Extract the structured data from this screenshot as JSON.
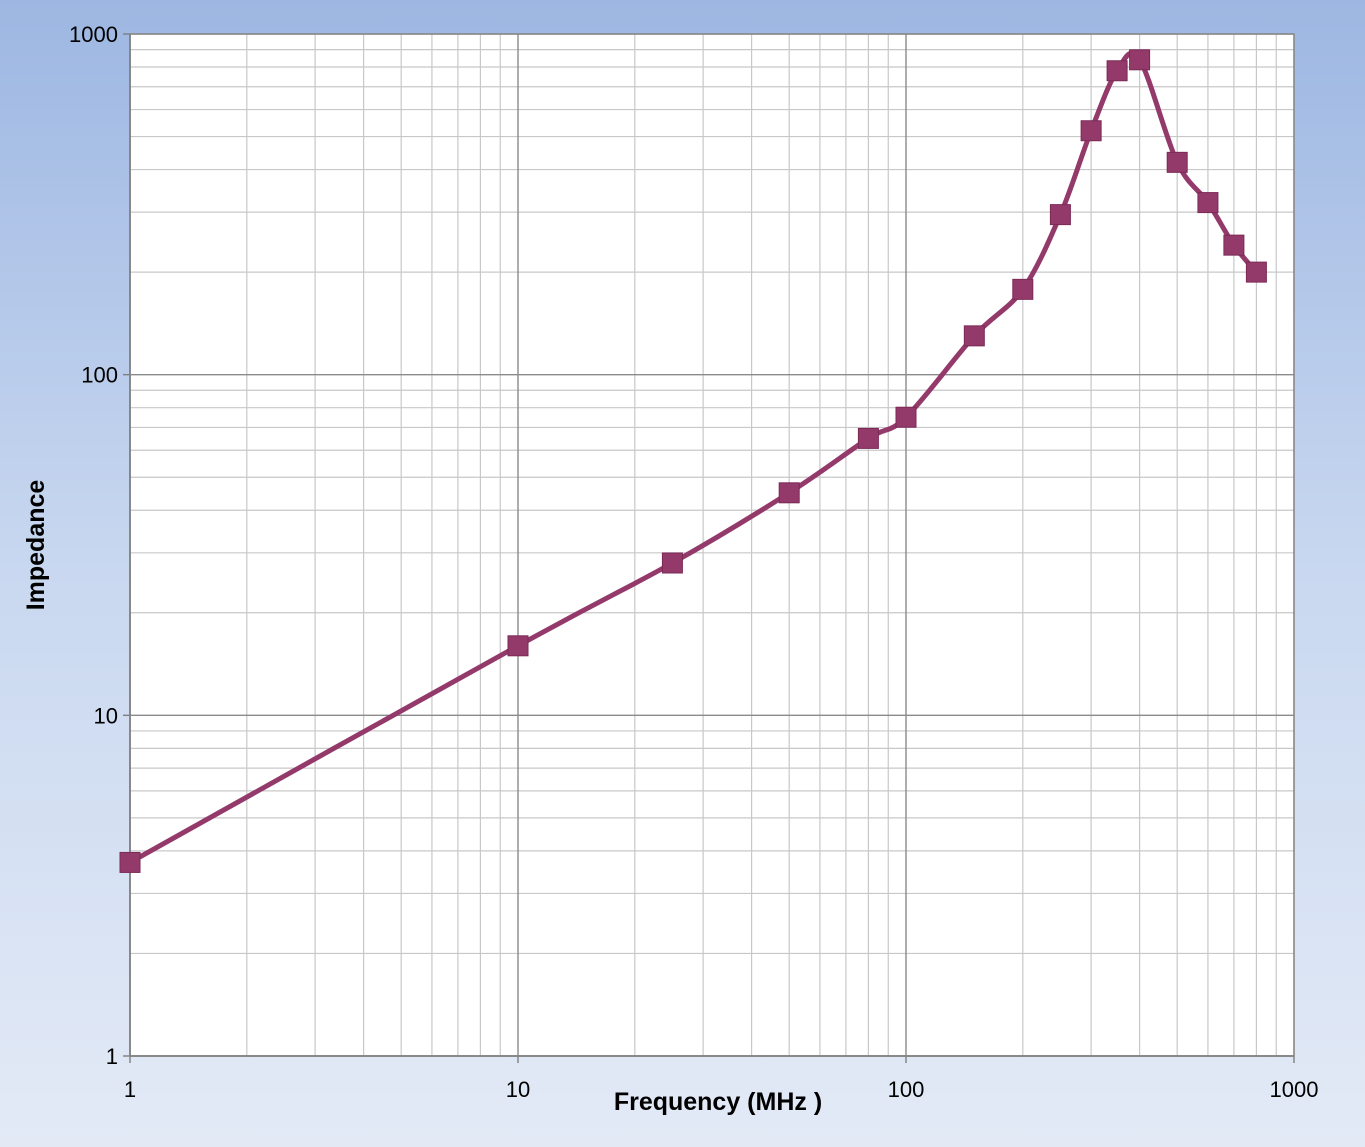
{
  "chart_data": {
    "type": "line",
    "title": "",
    "xlabel": "Frequency (MHz )",
    "ylabel": "Impedance",
    "x_scale": "log",
    "y_scale": "log",
    "xlim": [
      1,
      1000
    ],
    "ylim": [
      1,
      1000
    ],
    "x_ticks": [
      "1",
      "10",
      "100",
      "1000"
    ],
    "y_ticks": [
      "1",
      "10",
      "100",
      "1000"
    ],
    "grid": true,
    "legend": "none",
    "series": [
      {
        "color": "#943a6b",
        "marker": "square",
        "x": [
          1,
          10,
          25,
          50,
          80,
          100,
          150,
          200,
          250,
          300,
          350,
          400,
          500,
          600,
          700,
          800
        ],
        "y": [
          3.7,
          16,
          28,
          45,
          65,
          75,
          130,
          178,
          295,
          520,
          780,
          840,
          420,
          320,
          240,
          200
        ]
      }
    ]
  }
}
